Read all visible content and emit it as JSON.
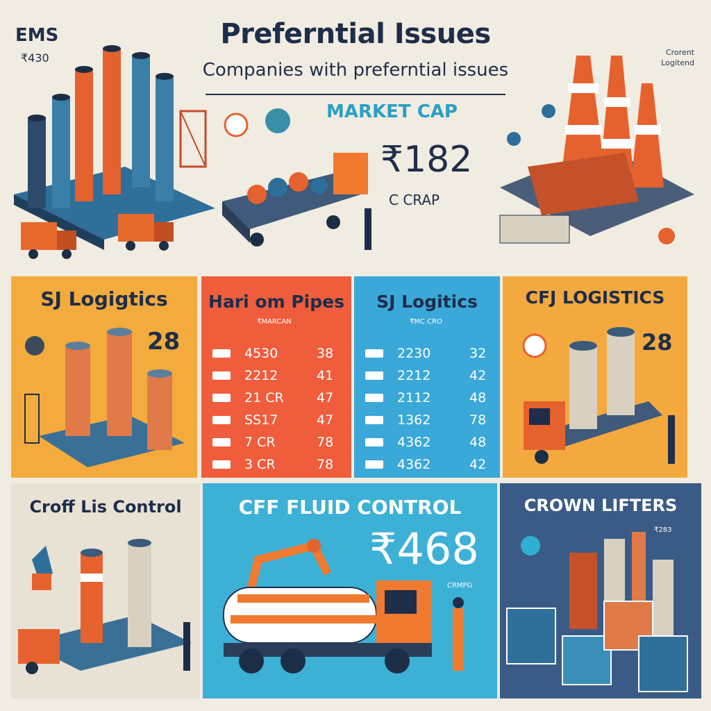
{
  "header": {
    "title": "Preferntial Issues",
    "subtitle": "Companies with preferntial issues",
    "corner_left_title": "EMS",
    "corner_left_number": "₹430",
    "corner_right_note": "Crorent Logitend"
  },
  "market": {
    "label": "MARKET CAP",
    "value": "₹182",
    "unit": "C CRAP"
  },
  "panels": {
    "sj_logistics_left": {
      "title": "SJ Logigtics",
      "value": "28"
    },
    "hariom_pipes": {
      "title": "Hari om Pipes",
      "caption": "₹MARCAN",
      "rows": [
        {
          "a": "4530",
          "b": "38"
        },
        {
          "a": "2212",
          "b": "41"
        },
        {
          "a": "21 CR",
          "b": "47"
        },
        {
          "a": "SS17",
          "b": "47"
        },
        {
          "a": "7 CR",
          "b": "78"
        },
        {
          "a": "3 CR",
          "b": "78"
        }
      ]
    },
    "sj_logistics_right": {
      "title": "SJ Logitics",
      "caption": "₹MC CRO",
      "rows": [
        {
          "a": "2230",
          "b": "32"
        },
        {
          "a": "2212",
          "b": "42"
        },
        {
          "a": "2112",
          "b": "48"
        },
        {
          "a": "1362",
          "b": "78"
        },
        {
          "a": "4362",
          "b": "48"
        },
        {
          "a": "4362",
          "b": "42"
        }
      ]
    },
    "cfj_logistics": {
      "title": "CFJ LOGISTICS",
      "value": "28"
    },
    "croff_control": {
      "title": "Croff Lis Control"
    },
    "cff_fluid_control": {
      "title": "CFF FLUID CONTROL",
      "value": "₹468",
      "caption": "CRMPG"
    },
    "crown_lifters": {
      "title": "CROWN LIFTERS",
      "caption": "₹283"
    }
  },
  "colors": {
    "navy": "#1e2d4a",
    "orange": "#ef5d3d",
    "amber": "#f2ab3c",
    "sky": "#3aa8d8",
    "steel": "#3a5b86",
    "cream": "#f1ece1"
  }
}
